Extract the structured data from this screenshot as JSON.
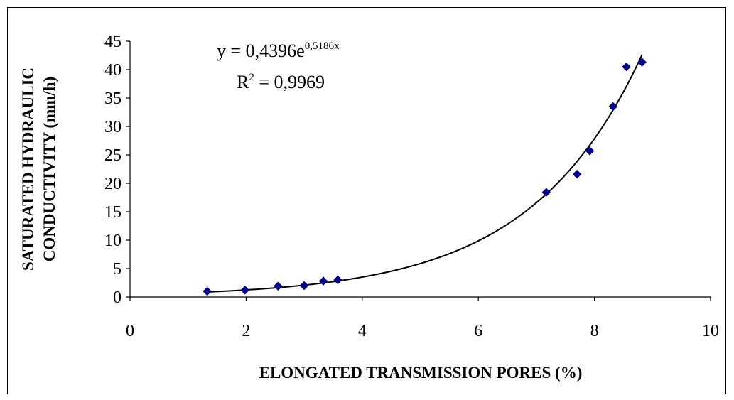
{
  "chart_data": {
    "type": "scatter",
    "xlabel": "ELONGATED TRANSMISSION PORES (%)",
    "ylabel": [
      "SATURATED HYDRAULIC",
      "CONDUCTIVITY (mm/h)"
    ],
    "xlim": [
      0,
      10
    ],
    "ylim": [
      0,
      45
    ],
    "xticks": [
      "0",
      "2",
      "4",
      "6",
      "8",
      "10"
    ],
    "yticks": [
      "0",
      "5",
      "10",
      "15",
      "20",
      "25",
      "30",
      "35",
      "40",
      "45"
    ],
    "grid": false,
    "marker_color": "#00008B",
    "points": [
      {
        "x": 1.33,
        "y": 1.0
      },
      {
        "x": 1.98,
        "y": 1.2
      },
      {
        "x": 2.55,
        "y": 1.9
      },
      {
        "x": 3.0,
        "y": 2.0
      },
      {
        "x": 3.33,
        "y": 2.8
      },
      {
        "x": 3.58,
        "y": 3.0
      },
      {
        "x": 7.17,
        "y": 18.4
      },
      {
        "x": 7.7,
        "y": 21.6
      },
      {
        "x": 7.92,
        "y": 25.7
      },
      {
        "x": 8.32,
        "y": 33.5
      },
      {
        "x": 8.55,
        "y": 40.5
      },
      {
        "x": 8.82,
        "y": 41.3
      }
    ],
    "trendline": {
      "type": "exponential",
      "a": 0.4396,
      "b": 0.5186,
      "x_range": [
        1.33,
        8.82
      ],
      "equation_prefix": "y = 0,4396e",
      "equation_exponent": "0,5186x",
      "r2_prefix": "R",
      "r2_exponent": "2",
      "r2_suffix": " = 0,9969"
    }
  }
}
